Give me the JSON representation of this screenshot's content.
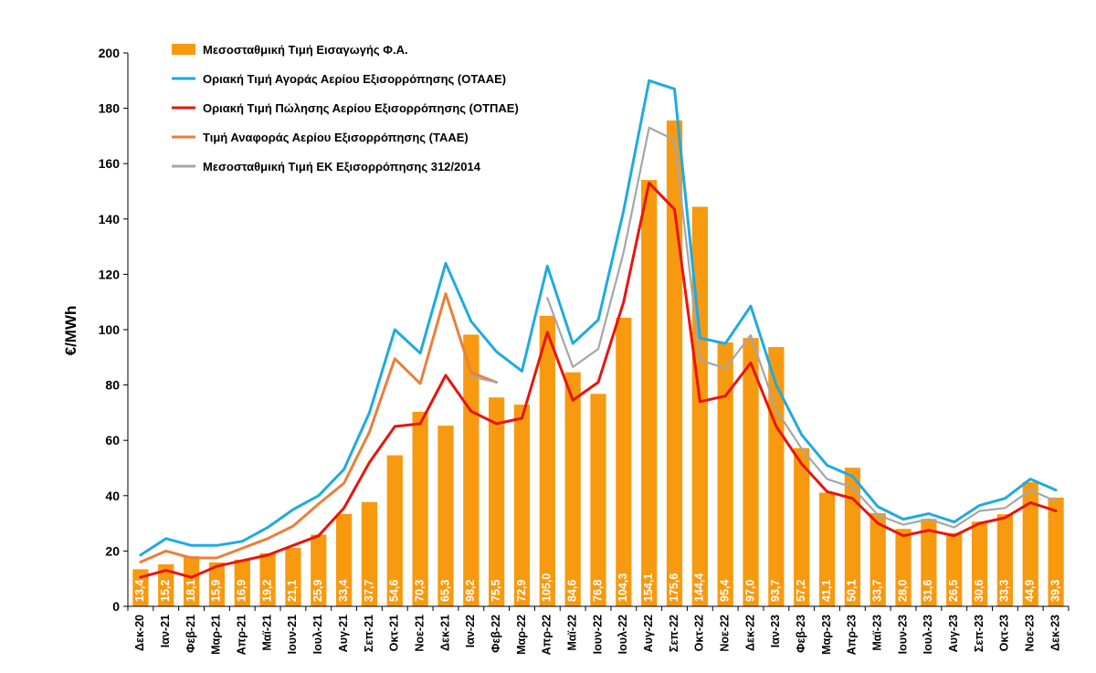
{
  "chart_data": {
    "type": "bar",
    "ylabel": "€/MWh",
    "ylim": [
      0,
      200
    ],
    "yticks": [
      0,
      20,
      40,
      60,
      80,
      100,
      120,
      140,
      160,
      180,
      200
    ],
    "categories": [
      "Δεκ-20",
      "Ιαν-21",
      "Φεβ-21",
      "Μαρ-21",
      "Απρ-21",
      "Μαϊ-21",
      "Ιουν-21",
      "Ιουλ-21",
      "Αυγ-21",
      "Σεπ-21",
      "Οκτ-21",
      "Νοε-21",
      "Δεκ-21",
      "Ιαν-22",
      "Φεβ-22",
      "Μαρ-22",
      "Απρ-22",
      "Μαϊ-22",
      "Ιουν-22",
      "Ιουλ-22",
      "Αυγ-22",
      "Σεπ-22",
      "Οκτ-22",
      "Νοε-22",
      "Δεκ-22",
      "Ιαν-23",
      "Φεβ-23",
      "Μαρ-23",
      "Απρ-23",
      "Μαϊ-23",
      "Ιουν-23",
      "Ιουλ-23",
      "Αυγ-23",
      "Σεπ-23",
      "Οκτ-23",
      "Νοε-23",
      "Δεκ-23"
    ],
    "bar_labels": [
      "13,4",
      "15,2",
      "18,1",
      "15,9",
      "16,9",
      "19,2",
      "21,1",
      "25,9",
      "33,4",
      "37,7",
      "54,6",
      "70,3",
      "65,3",
      "98,2",
      "75,5",
      "72,9",
      "105,0",
      "84,6",
      "76,8",
      "104,3",
      "154,1",
      "175,6",
      "144,4",
      "95,4",
      "97,0",
      "93,7",
      "57,2",
      "41,1",
      "50,1",
      "33,7",
      "28,0",
      "31,6",
      "26,5",
      "30,6",
      "33,3",
      "44,9",
      "39,3"
    ],
    "series": [
      {
        "name": "Μεσοσταθμική Τιμή Εισαγωγής Φ.Α.",
        "type": "bar",
        "color": "#F79A10",
        "values": [
          13.4,
          15.2,
          18.1,
          15.9,
          16.9,
          19.2,
          21.1,
          25.9,
          33.4,
          37.7,
          54.6,
          70.3,
          65.3,
          98.2,
          75.5,
          72.9,
          105.0,
          84.6,
          76.8,
          104.3,
          154.1,
          175.6,
          144.4,
          95.4,
          97.0,
          93.7,
          57.2,
          41.1,
          50.1,
          33.7,
          28.0,
          31.6,
          26.5,
          30.6,
          33.3,
          44.9,
          39.3
        ]
      },
      {
        "name": "Οριακή Τιμή Αγοράς Αερίου Εξισορρόπησης  (ΟΤΑΑΕ)",
        "type": "line",
        "color": "#1FAAE0",
        "values": [
          18.5,
          24.5,
          22,
          22,
          23.5,
          28.5,
          35,
          40,
          49.5,
          70,
          100,
          91.5,
          124,
          103,
          92,
          85,
          123,
          95,
          103.5,
          143,
          190,
          187,
          97,
          95,
          108.5,
          80,
          62,
          51,
          47,
          36,
          31.5,
          33.5,
          30.5,
          36.5,
          39,
          46,
          42
        ]
      },
      {
        "name": "Οριακή Τιμή Πώλησης Αερίου Εξισορρόπησης (ΟΤΠΑΕ)",
        "type": "line",
        "color": "#E8150C",
        "values": [
          10.5,
          13,
          10.5,
          14.5,
          16.5,
          18.5,
          22,
          25.5,
          35.5,
          52,
          65,
          66,
          83.5,
          70.5,
          66,
          68,
          99,
          74.5,
          81,
          110,
          153,
          143.5,
          74,
          76,
          88,
          65,
          51.5,
          41.5,
          39,
          30,
          25.5,
          27.5,
          25.5,
          30,
          32,
          37.5,
          34.5
        ]
      },
      {
        "name": "Τιμή Αναφοράς Αερίου Εξισορρόπησης (ΤΑΑΕ)",
        "type": "line",
        "color": "#EA7F3A",
        "values": [
          16,
          20,
          17.5,
          17.5,
          21,
          24.5,
          29,
          37,
          44.5,
          63,
          89.5,
          80.5,
          113,
          84.5,
          81,
          null,
          null,
          null,
          null,
          null,
          null,
          null,
          null,
          null,
          null,
          null,
          null,
          null,
          null,
          null,
          null,
          null,
          null,
          null,
          null,
          null,
          null
        ]
      },
      {
        "name": "Μεσοσταθμική Τιμή ΕΚ Εξισορρόπησης 312/2014",
        "type": "line",
        "color": "#A6A6A6",
        "values": [
          null,
          null,
          null,
          null,
          null,
          null,
          null,
          null,
          null,
          null,
          null,
          null,
          null,
          83,
          81,
          null,
          111.5,
          86.5,
          93,
          128,
          173,
          168.5,
          89,
          86,
          98,
          71,
          57,
          46,
          43,
          33,
          29.5,
          31.5,
          28.5,
          34.5,
          35.5,
          42,
          38
        ]
      }
    ],
    "legend_position": "top-left",
    "grid": false
  }
}
